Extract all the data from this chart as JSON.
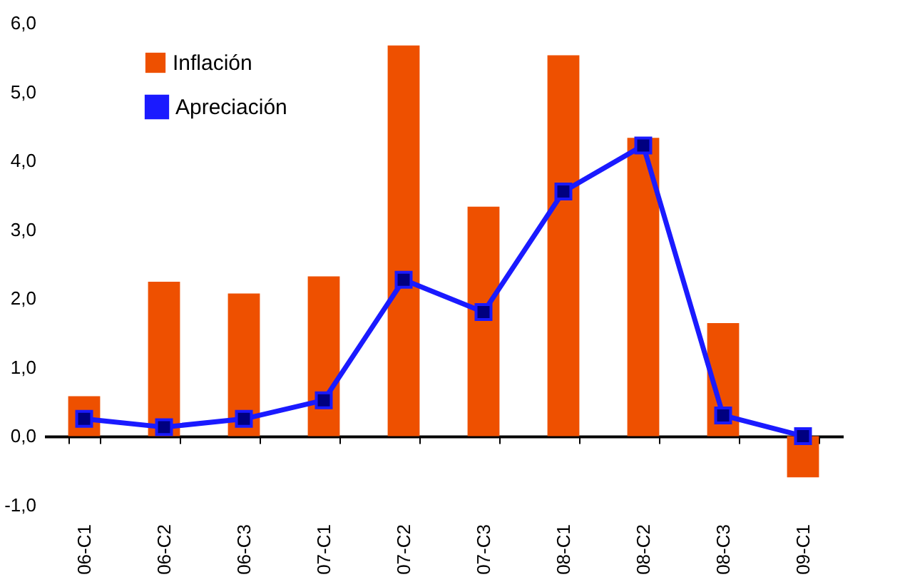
{
  "chart_data": {
    "type": "bar",
    "categories": [
      "06-C1",
      "06-C2",
      "06-C3",
      "07-C1",
      "07-C2",
      "07-C3",
      "08-C1",
      "08-C2",
      "08-C3",
      "09-C1"
    ],
    "series": [
      {
        "name": "Inflación",
        "color": "#ee5000",
        "values": [
          0.58,
          2.24,
          2.07,
          2.32,
          5.67,
          3.33,
          5.53,
          4.33,
          1.64,
          -0.6
        ]
      },
      {
        "name": "Apreciación",
        "type": "line",
        "color": "#1a1aff",
        "marker": "square",
        "values": [
          0.25,
          0.13,
          0.25,
          0.52,
          2.27,
          1.8,
          3.55,
          4.22,
          0.3,
          0.0
        ]
      }
    ],
    "ylim": [
      -1,
      6
    ],
    "yticks": [
      {
        "value": -1,
        "label": "-1,0"
      },
      {
        "value": 0,
        "label": "0,0"
      },
      {
        "value": 1,
        "label": "1,0"
      },
      {
        "value": 2,
        "label": "2,0"
      },
      {
        "value": 3,
        "label": "3,0"
      },
      {
        "value": 4,
        "label": "4,0"
      },
      {
        "value": 5,
        "label": "5,0"
      },
      {
        "value": 6,
        "label": "6,0"
      }
    ],
    "legend": "top left"
  }
}
